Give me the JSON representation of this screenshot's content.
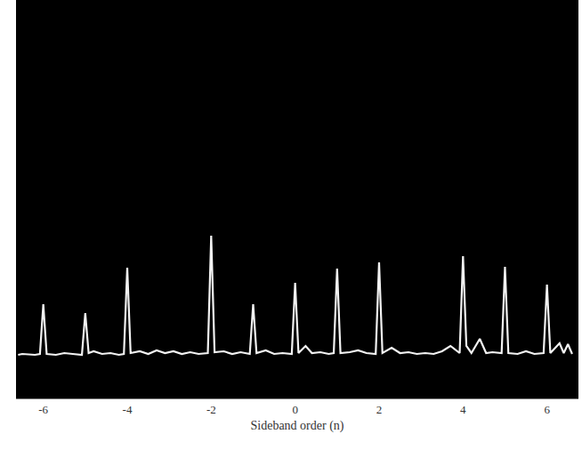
{
  "chart_data": {
    "type": "line",
    "x_label": "Sideband order (n)",
    "x": [
      -6.6,
      -6.5,
      -6.2,
      -6.08,
      -6,
      -5.92,
      -5.7,
      -5.5,
      -5.3,
      -5.08,
      -5,
      -4.92,
      -4.8,
      -4.6,
      -4.4,
      -4.2,
      -4.08,
      -4,
      -3.92,
      -3.7,
      -3.5,
      -3.3,
      -3.1,
      -2.9,
      -2.7,
      -2.5,
      -2.3,
      -2.08,
      -2,
      -1.92,
      -1.7,
      -1.5,
      -1.3,
      -1.08,
      -1,
      -0.92,
      -0.7,
      -0.5,
      -0.3,
      -0.08,
      0,
      0.08,
      0.25,
      0.4,
      0.6,
      0.8,
      0.92,
      1,
      1.08,
      1.3,
      1.5,
      1.7,
      1.92,
      2,
      2.08,
      2.3,
      2.5,
      2.7,
      2.9,
      3.1,
      3.3,
      3.5,
      3.7,
      3.92,
      4,
      4.08,
      4.2,
      4.4,
      4.55,
      4.7,
      4.92,
      5,
      5.08,
      5.3,
      5.5,
      5.7,
      5.92,
      6,
      6.08,
      6.3,
      6.4,
      6.5,
      6.6
    ],
    "values": [
      4,
      5,
      4,
      5,
      61,
      5,
      4,
      6,
      5,
      4,
      51,
      6,
      8,
      5,
      6,
      4,
      5,
      102,
      6,
      8,
      5,
      9,
      6,
      8,
      5,
      7,
      5,
      6,
      138,
      7,
      8,
      5,
      7,
      5,
      61,
      6,
      9,
      5,
      6,
      5,
      85,
      6,
      14,
      6,
      7,
      5,
      6,
      101,
      6,
      7,
      9,
      6,
      5,
      108,
      6,
      12,
      6,
      7,
      5,
      6,
      5,
      8,
      14,
      6,
      115,
      14,
      6,
      22,
      6,
      7,
      6,
      103,
      6,
      5,
      8,
      5,
      6,
      83,
      6,
      17,
      6,
      16,
      5
    ],
    "color": "#f2f2f2",
    "xlim": [
      -6.65,
      6.75
    ],
    "xticks": [
      -6,
      -4,
      -2,
      0,
      2,
      4,
      6
    ],
    "ylim": [
      -45,
      403
    ],
    "tick_labels": "x",
    "grid": false
  }
}
